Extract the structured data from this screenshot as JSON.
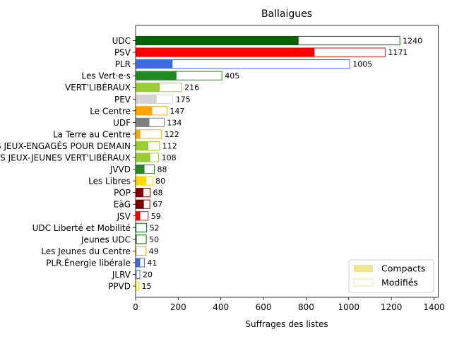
{
  "chart_data": {
    "type": "bar",
    "orientation": "horizontal",
    "stacked": true,
    "title": "Ballaigues",
    "xlabel": "Suffrages des listes",
    "ylabel": "",
    "xlim": [
      0,
      1420
    ],
    "xticks": [
      0,
      200,
      400,
      600,
      800,
      1000,
      1200,
      1400
    ],
    "grid": false,
    "legend": {
      "placement": "bottom-right",
      "entries": [
        {
          "name": "Compacts",
          "color": "#f0e68c",
          "style": "filled"
        },
        {
          "name": "Modifiés",
          "color": "#f0e68c",
          "style": "outline"
        }
      ]
    },
    "categories": [
      "UDC",
      "PSV",
      "PLR",
      "Les Vert·e·s",
      "VERT'LIBÉRAUX",
      "PEV",
      "Le Centre",
      "UDF",
      "La Terre au Centre",
      "LES JEUX-ENGAGÉS POUR DEMAIN",
      "LES JEUX-JEUNES VERT'LIBÉRAUX",
      "JVVD",
      "Les Libres",
      "POP",
      "EàG",
      "JSV",
      "UDC Liberté et Mobilité",
      "Jeunes UDC",
      "Les Jeunes du Centre",
      "PLR.Énergie libérale",
      "JLRV",
      "PPVD"
    ],
    "colors": [
      "#006400",
      "#ff0000",
      "#4169e1",
      "#228b22",
      "#9acd32",
      "#d3d3d3",
      "#ffa500",
      "#808080",
      "#ffa500",
      "#9acd32",
      "#9acd32",
      "#228b22",
      "#ffd700",
      "#800000",
      "#800000",
      "#ff0000",
      "#006400",
      "#006400",
      "#ffa500",
      "#4169e1",
      "#4169e1",
      "#ffd700"
    ],
    "series": [
      {
        "name": "Compacts",
        "values": [
          763,
          838,
          172,
          190,
          112,
          97,
          76,
          63,
          20,
          58,
          67,
          40,
          48,
          35,
          37,
          20,
          2,
          3,
          2,
          20,
          3,
          2
        ]
      },
      {
        "name": "Modifiés",
        "values": [
          477,
          333,
          833,
          215,
          104,
          78,
          71,
          71,
          102,
          54,
          41,
          48,
          32,
          33,
          30,
          39,
          50,
          47,
          47,
          21,
          17,
          13
        ]
      }
    ],
    "totals": [
      1240,
      1171,
      1005,
      405,
      216,
      175,
      147,
      134,
      122,
      112,
      108,
      88,
      80,
      68,
      67,
      59,
      52,
      50,
      49,
      41,
      20,
      15
    ]
  }
}
